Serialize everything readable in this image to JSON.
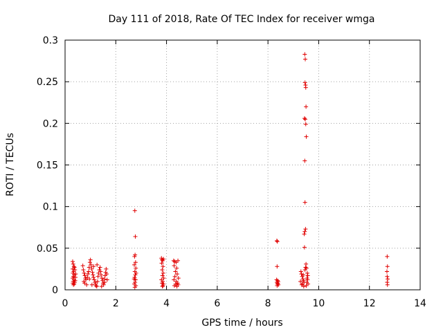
{
  "chart_data": {
    "type": "scatter",
    "title": "Day 111 of 2018, Rate Of TEC Index for receiver wmga",
    "xlabel": "GPS time / hours",
    "ylabel": "ROTI / TECUs",
    "xlim": [
      0,
      14
    ],
    "ylim": [
      0,
      0.3
    ],
    "xticks": [
      0,
      2,
      4,
      6,
      8,
      10,
      12,
      14
    ],
    "yticks": [
      0,
      0.05,
      0.1,
      0.15,
      0.2,
      0.25,
      0.3
    ],
    "xtick_labels": [
      "0",
      "2",
      "4",
      "6",
      "8",
      "10",
      "12",
      "14"
    ],
    "ytick_labels": [
      "0",
      "0.05",
      "0.1",
      "0.15",
      "0.2",
      "0.25",
      "0.3"
    ],
    "grid": true,
    "marker": "+",
    "color": "#e00000",
    "series": [
      {
        "name": "ROTI",
        "points": [
          [
            0.3,
            0.034
          ],
          [
            0.32,
            0.031
          ],
          [
            0.35,
            0.028
          ],
          [
            0.3,
            0.025
          ],
          [
            0.34,
            0.022
          ],
          [
            0.31,
            0.02
          ],
          [
            0.36,
            0.018
          ],
          [
            0.33,
            0.016
          ],
          [
            0.3,
            0.014
          ],
          [
            0.35,
            0.012
          ],
          [
            0.32,
            0.01
          ],
          [
            0.38,
            0.009
          ],
          [
            0.31,
            0.008
          ],
          [
            0.36,
            0.007
          ],
          [
            0.33,
            0.006
          ],
          [
            0.4,
            0.011
          ],
          [
            0.41,
            0.015
          ],
          [
            0.42,
            0.019
          ],
          [
            0.39,
            0.024
          ],
          [
            0.37,
            0.027
          ],
          [
            0.7,
            0.029
          ],
          [
            0.72,
            0.024
          ],
          [
            0.75,
            0.02
          ],
          [
            0.78,
            0.017
          ],
          [
            0.8,
            0.014
          ],
          [
            0.82,
            0.012
          ],
          [
            0.74,
            0.01
          ],
          [
            0.77,
            0.008
          ],
          [
            0.85,
            0.006
          ],
          [
            0.88,
            0.015
          ],
          [
            0.9,
            0.019
          ],
          [
            0.93,
            0.022
          ],
          [
            0.95,
            0.027
          ],
          [
            0.98,
            0.033
          ],
          [
            1.0,
            0.036
          ],
          [
            1.02,
            0.03
          ],
          [
            1.05,
            0.025
          ],
          [
            1.08,
            0.021
          ],
          [
            1.1,
            0.018
          ],
          [
            1.12,
            0.015
          ],
          [
            1.15,
            0.012
          ],
          [
            1.18,
            0.009
          ],
          [
            1.2,
            0.007
          ],
          [
            1.22,
            0.005
          ],
          [
            1.25,
            0.004
          ],
          [
            1.28,
            0.01
          ],
          [
            1.3,
            0.016
          ],
          [
            1.32,
            0.02
          ],
          [
            1.35,
            0.024
          ],
          [
            1.38,
            0.027
          ],
          [
            1.4,
            0.022
          ],
          [
            1.42,
            0.018
          ],
          [
            1.45,
            0.014
          ],
          [
            1.48,
            0.011
          ],
          [
            1.5,
            0.008
          ],
          [
            1.52,
            0.006
          ],
          [
            1.55,
            0.013
          ],
          [
            1.58,
            0.017
          ],
          [
            1.6,
            0.021
          ],
          [
            1.62,
            0.025
          ],
          [
            1.64,
            0.019
          ],
          [
            1.66,
            0.012
          ],
          [
            1.12,
            0.028
          ],
          [
            1.26,
            0.03
          ],
          [
            0.96,
            0.013
          ],
          [
            1.06,
            0.006
          ],
          [
            1.44,
            0.004
          ],
          [
            1.56,
            0.009
          ],
          [
            2.75,
            0.095
          ],
          [
            2.77,
            0.064
          ],
          [
            2.76,
            0.042
          ],
          [
            2.74,
            0.04
          ],
          [
            2.78,
            0.033
          ],
          [
            2.73,
            0.03
          ],
          [
            2.79,
            0.026
          ],
          [
            2.75,
            0.022
          ],
          [
            2.77,
            0.018
          ],
          [
            2.74,
            0.015
          ],
          [
            2.78,
            0.012
          ],
          [
            2.76,
            0.009
          ],
          [
            2.73,
            0.007
          ],
          [
            2.79,
            0.005
          ],
          [
            2.75,
            0.003
          ],
          [
            2.8,
            0.02
          ],
          [
            2.72,
            0.013
          ],
          [
            3.8,
            0.038
          ],
          [
            3.82,
            0.036
          ],
          [
            3.85,
            0.035
          ],
          [
            3.88,
            0.037
          ],
          [
            3.81,
            0.032
          ],
          [
            3.86,
            0.028
          ],
          [
            3.83,
            0.024
          ],
          [
            3.87,
            0.02
          ],
          [
            3.84,
            0.017
          ],
          [
            3.89,
            0.014
          ],
          [
            3.8,
            0.012
          ],
          [
            3.85,
            0.01
          ],
          [
            3.82,
            0.008
          ],
          [
            3.88,
            0.007
          ],
          [
            3.86,
            0.005
          ],
          [
            3.84,
            0.004
          ],
          [
            4.28,
            0.035
          ],
          [
            4.32,
            0.034
          ],
          [
            4.38,
            0.033
          ],
          [
            4.45,
            0.035
          ],
          [
            4.3,
            0.029
          ],
          [
            4.4,
            0.026
          ],
          [
            4.35,
            0.022
          ],
          [
            4.42,
            0.019
          ],
          [
            4.33,
            0.016
          ],
          [
            4.47,
            0.014
          ],
          [
            4.29,
            0.012
          ],
          [
            4.39,
            0.01
          ],
          [
            4.44,
            0.008
          ],
          [
            4.36,
            0.007
          ],
          [
            4.31,
            0.005
          ],
          [
            4.46,
            0.006
          ],
          [
            4.41,
            0.004
          ],
          [
            8.35,
            0.059
          ],
          [
            8.37,
            0.058
          ],
          [
            8.36,
            0.028
          ],
          [
            8.34,
            0.012
          ],
          [
            8.38,
            0.011
          ],
          [
            8.4,
            0.01
          ],
          [
            8.35,
            0.009
          ],
          [
            8.39,
            0.008
          ],
          [
            8.37,
            0.007
          ],
          [
            8.41,
            0.006
          ],
          [
            8.36,
            0.005
          ],
          [
            9.45,
            0.283
          ],
          [
            9.47,
            0.277
          ],
          [
            9.46,
            0.249
          ],
          [
            9.48,
            0.246
          ],
          [
            9.49,
            0.243
          ],
          [
            9.5,
            0.22
          ],
          [
            9.44,
            0.206
          ],
          [
            9.47,
            0.205
          ],
          [
            9.49,
            0.199
          ],
          [
            9.51,
            0.184
          ],
          [
            9.45,
            0.155
          ],
          [
            9.46,
            0.105
          ],
          [
            9.48,
            0.073
          ],
          [
            9.45,
            0.07
          ],
          [
            9.43,
            0.067
          ],
          [
            9.44,
            0.051
          ],
          [
            9.5,
            0.031
          ],
          [
            9.48,
            0.027
          ],
          [
            9.52,
            0.026
          ],
          [
            9.46,
            0.024
          ],
          [
            9.3,
            0.022
          ],
          [
            9.32,
            0.019
          ],
          [
            9.35,
            0.016
          ],
          [
            9.38,
            0.013
          ],
          [
            9.4,
            0.011
          ],
          [
            9.42,
            0.009
          ],
          [
            9.36,
            0.007
          ],
          [
            9.33,
            0.006
          ],
          [
            9.55,
            0.02
          ],
          [
            9.57,
            0.017
          ],
          [
            9.54,
            0.014
          ],
          [
            9.56,
            0.012
          ],
          [
            9.53,
            0.009
          ],
          [
            9.58,
            0.007
          ],
          [
            9.41,
            0.004
          ],
          [
            9.51,
            0.005
          ],
          [
            9.28,
            0.01
          ],
          [
            9.39,
            0.018
          ],
          [
            12.7,
            0.04
          ],
          [
            12.71,
            0.028
          ],
          [
            12.69,
            0.022
          ],
          [
            12.7,
            0.016
          ],
          [
            12.72,
            0.013
          ],
          [
            12.7,
            0.009
          ],
          [
            12.71,
            0.006
          ]
        ]
      }
    ]
  }
}
